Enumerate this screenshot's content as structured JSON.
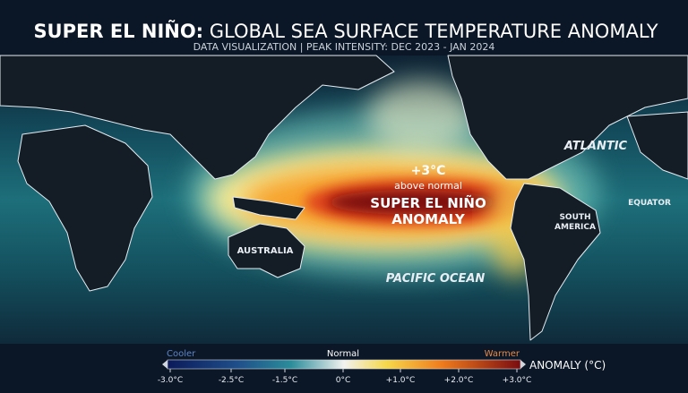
{
  "header": {
    "title_bold": "SUPER EL NIÑO:",
    "title_rest": "GLOBAL SEA SURFACE TEMPERATURE ANOMALY",
    "subtitle": "DATA VISUALIZATION | PEAK INTENSITY: DEC 2023 - JAN 2024"
  },
  "map": {
    "labels": {
      "atlantic": "ATLANTIC",
      "equator": "EQUATOR",
      "south_america": [
        "SOUTH",
        "AMERICA"
      ],
      "australia": "AUSTRALIA",
      "pacific": "PACIFIC OCEAN"
    },
    "callout": {
      "value": "+3°C",
      "note": "above normal",
      "headline": [
        "SUPER EL NIÑO",
        "ANOMALY"
      ]
    }
  },
  "legend": {
    "cooler": "Cooler",
    "normal": "Normal",
    "warmer": "Warmer",
    "title": "ANOMALY (°C)",
    "ticks": [
      "-3.0°C",
      "-2.5°C",
      "-1.5°C",
      "0°C",
      "+1.0°C",
      "+2.0°C",
      "+3.0°C"
    ]
  }
}
